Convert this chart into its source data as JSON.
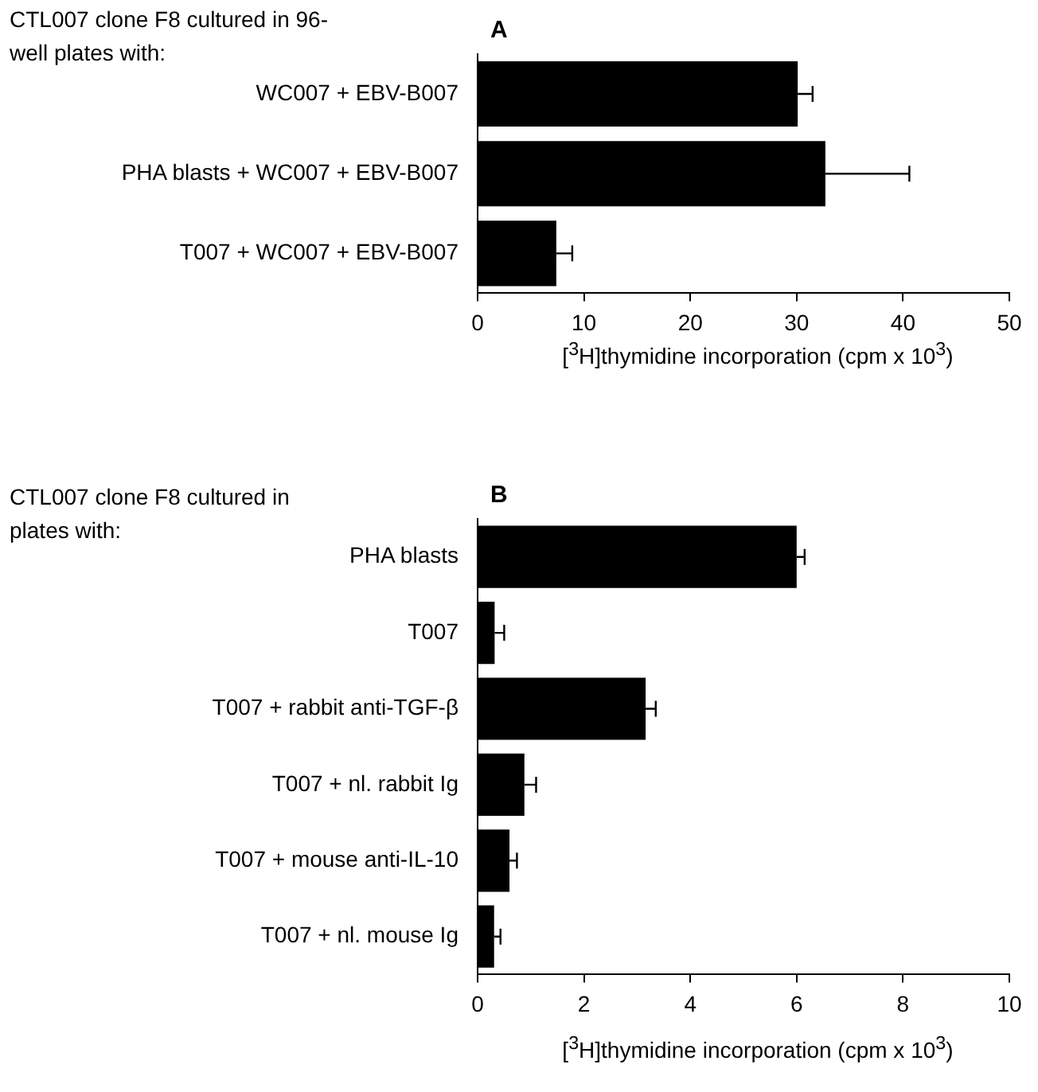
{
  "chart_data": [
    {
      "type": "bar",
      "orientation": "horizontal",
      "title": "CTL007 clone F8 cultured in 96-well plates with:",
      "xlabel": "[$^{3}$H]thymidine incorporation (cpm x 10$^{3}$)",
      "annotations": [
        "A"
      ],
      "categories": [
        "WC007 + EBV-B007",
        "PHA blasts + WC007 + EBV-B007",
        "T007 + WC007 + EBV-B007"
      ],
      "values": [
        30.1,
        32.7,
        7.4
      ],
      "errors": [
        [
          30.1,
          31.5
        ],
        [
          32.7,
          40.6
        ],
        [
          7.4,
          8.9
        ]
      ],
      "color": "#000000",
      "xlim": [
        0,
        50
      ],
      "xticks": [
        0,
        10,
        20,
        30,
        40,
        50
      ],
      "grid": false
    },
    {
      "type": "bar",
      "orientation": "horizontal",
      "title": "CTL007 clone F8 cultured in plates with:",
      "xlabel": "[$^{3}$H]thymidine incorporation (cpm x 10$^{3}$)",
      "annotations": [
        "B"
      ],
      "categories": [
        "PHA blasts",
        "T007",
        "T007 + rabbit anti-TGF-β",
        "T007 + nl. rabbit Ig",
        "T007 + mouse anti-IL-10",
        "T007 + nl. mouse Ig"
      ],
      "values": [
        6.0,
        0.32,
        3.16,
        0.88,
        0.6,
        0.31
      ],
      "errors": [
        [
          6.0,
          6.15
        ],
        [
          0.32,
          0.5
        ],
        [
          3.16,
          3.35
        ],
        [
          0.88,
          1.1
        ],
        [
          0.6,
          0.74
        ],
        [
          0.31,
          0.43
        ]
      ],
      "color": "#000000",
      "xlim": [
        0,
        10
      ],
      "xticks": [
        0,
        2,
        4,
        6,
        8,
        10
      ],
      "grid": false
    }
  ]
}
